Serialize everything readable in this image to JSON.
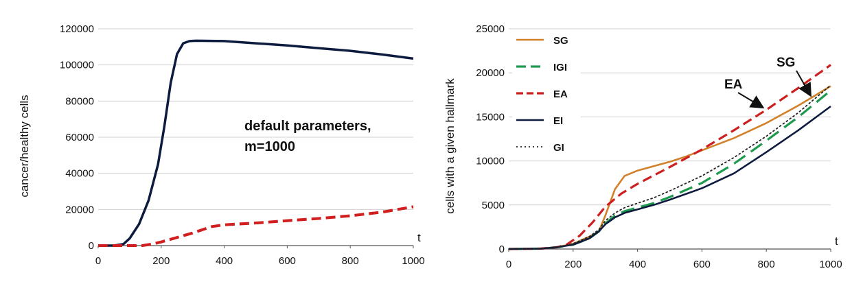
{
  "chart_data": [
    {
      "type": "line",
      "xlabel": "t",
      "ylabel": "cancer/healthy cells",
      "xlim": [
        0,
        1000
      ],
      "ylim": [
        0,
        120000
      ],
      "x_ticks": [
        "0",
        "200",
        "400",
        "600",
        "800",
        "1000"
      ],
      "y_ticks": [
        "0",
        "20000",
        "40000",
        "60000",
        "80000",
        "100000",
        "120000"
      ],
      "grid": true,
      "annotation_lines": [
        "default parameters,",
        "m=1000"
      ],
      "series": [
        {
          "color": "#0d1b3e",
          "style": "solid",
          "x": [
            0,
            50,
            80,
            100,
            130,
            160,
            190,
            210,
            230,
            250,
            270,
            290,
            310,
            400,
            500,
            600,
            700,
            800,
            900,
            1000
          ],
          "values": [
            0,
            0,
            800,
            4000,
            12000,
            25000,
            45000,
            66000,
            90000,
            106000,
            112000,
            113200,
            113400,
            113200,
            112000,
            110800,
            109300,
            107800,
            105800,
            103500
          ]
        },
        {
          "color": "#d11f1f",
          "style": "dashed",
          "x": [
            0,
            140,
            170,
            200,
            240,
            300,
            360,
            400,
            500,
            600,
            700,
            800,
            900,
            1000
          ],
          "values": [
            0,
            0,
            800,
            2000,
            4000,
            7000,
            10500,
            11500,
            12500,
            13800,
            15000,
            16500,
            18500,
            21500
          ]
        }
      ]
    },
    {
      "type": "line",
      "xlabel": "t",
      "ylabel": "cells with a given hallmark",
      "xlim": [
        0,
        1000
      ],
      "ylim": [
        0,
        25000
      ],
      "x_ticks": [
        "0",
        "200",
        "400",
        "600",
        "800",
        "1000"
      ],
      "y_ticks": [
        "0",
        "5000",
        "10000",
        "15000",
        "20000",
        "25000"
      ],
      "grid": true,
      "legend_position": "top-left",
      "annotations": [
        {
          "text": "SG",
          "target_x": 950,
          "target_y": 17400
        },
        {
          "text": "EA",
          "target_x": 800,
          "target_y": 15700
        }
      ],
      "series": [
        {
          "name": "SG",
          "color": "#d2812a",
          "style": "solid",
          "x": [
            0,
            100,
            150,
            200,
            250,
            280,
            300,
            330,
            360,
            400,
            450,
            500,
            550,
            600,
            700,
            800,
            900,
            1000
          ],
          "values": [
            0,
            50,
            200,
            600,
            1400,
            2000,
            3800,
            6800,
            8300,
            8900,
            9400,
            9900,
            10500,
            11200,
            12600,
            14300,
            16300,
            18500
          ]
        },
        {
          "name": "IGI",
          "color": "#1e9a4e",
          "style": "longdash",
          "x": [
            0,
            100,
            150,
            200,
            250,
            280,
            300,
            330,
            360,
            400,
            450,
            500,
            600,
            700,
            800,
            900,
            1000
          ],
          "values": [
            0,
            50,
            200,
            500,
            1200,
            2000,
            2900,
            3800,
            4300,
            4700,
            5200,
            5900,
            7500,
            9700,
            12300,
            15000,
            18000
          ]
        },
        {
          "name": "EA",
          "color": "#cc1f1f",
          "style": "dashed",
          "x": [
            0,
            100,
            150,
            180,
            220,
            260,
            300,
            350,
            400,
            500,
            600,
            700,
            800,
            900,
            1000
          ],
          "values": [
            0,
            50,
            200,
            500,
            1500,
            3000,
            4800,
            6300,
            7400,
            9300,
            11300,
            13500,
            15800,
            18300,
            20900
          ]
        },
        {
          "name": "EI",
          "color": "#0d1b3e",
          "style": "solid",
          "x": [
            0,
            100,
            150,
            200,
            250,
            280,
            300,
            330,
            360,
            400,
            450,
            500,
            600,
            700,
            800,
            900,
            1000
          ],
          "values": [
            0,
            50,
            200,
            500,
            1200,
            2000,
            2800,
            3600,
            4100,
            4500,
            5000,
            5600,
            6900,
            8600,
            11000,
            13500,
            16200
          ]
        },
        {
          "name": "GI",
          "color": "#222222",
          "style": "dotted",
          "x": [
            0,
            100,
            150,
            200,
            250,
            280,
            300,
            330,
            360,
            400,
            450,
            500,
            600,
            700,
            800,
            900,
            1000
          ],
          "values": [
            0,
            50,
            200,
            600,
            1400,
            2200,
            3200,
            4100,
            4700,
            5200,
            5800,
            6600,
            8300,
            10400,
            12800,
            15500,
            18600
          ]
        }
      ]
    }
  ]
}
